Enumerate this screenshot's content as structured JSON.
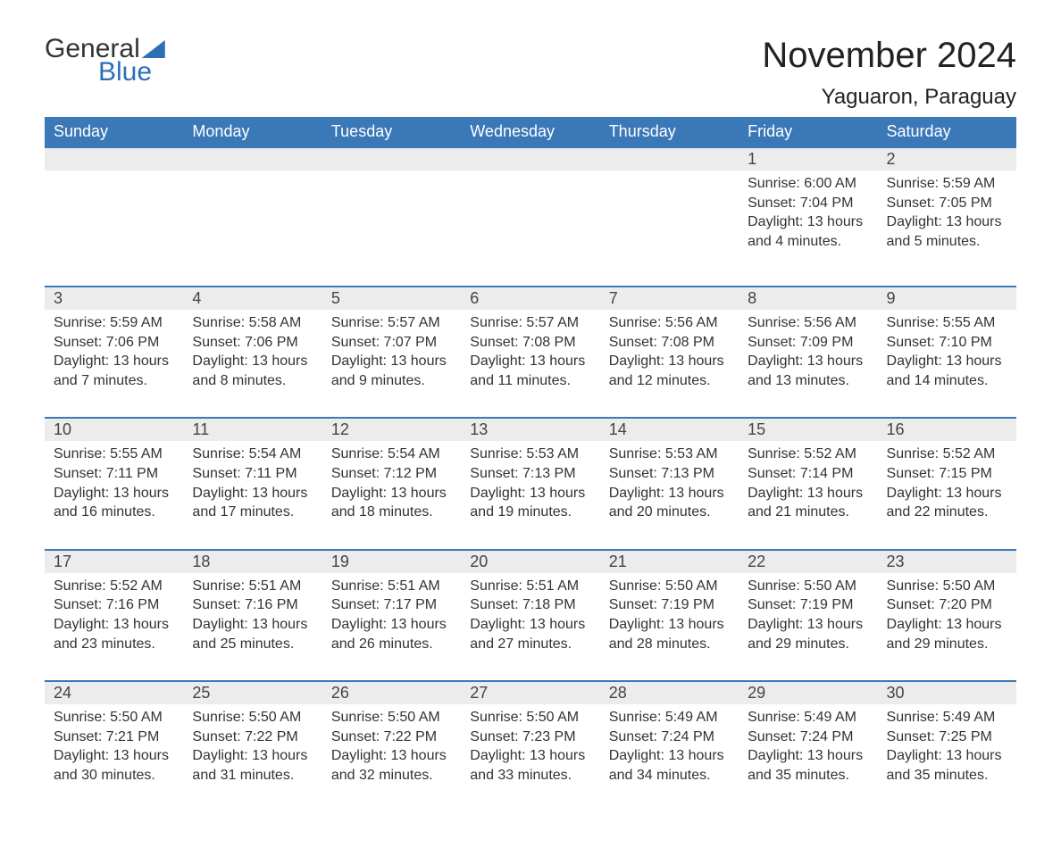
{
  "brand": {
    "word1": "General",
    "word2": "Blue"
  },
  "title": "November 2024",
  "location": "Yaguaron, Paraguay",
  "colors": {
    "header_bg": "#3b78b8",
    "header_text": "#ffffff",
    "daynum_bg": "#ececec",
    "row_border": "#3b78b8",
    "brand_blue": "#2d6fb6",
    "page_bg": "#ffffff",
    "body_text": "#333333"
  },
  "day_headers": [
    "Sunday",
    "Monday",
    "Tuesday",
    "Wednesday",
    "Thursday",
    "Friday",
    "Saturday"
  ],
  "weeks": [
    [
      {
        "num": "",
        "sunrise": "",
        "sunset": "",
        "daylight": ""
      },
      {
        "num": "",
        "sunrise": "",
        "sunset": "",
        "daylight": ""
      },
      {
        "num": "",
        "sunrise": "",
        "sunset": "",
        "daylight": ""
      },
      {
        "num": "",
        "sunrise": "",
        "sunset": "",
        "daylight": ""
      },
      {
        "num": "",
        "sunrise": "",
        "sunset": "",
        "daylight": ""
      },
      {
        "num": "1",
        "sunrise": "Sunrise: 6:00 AM",
        "sunset": "Sunset: 7:04 PM",
        "daylight": "Daylight: 13 hours and 4 minutes."
      },
      {
        "num": "2",
        "sunrise": "Sunrise: 5:59 AM",
        "sunset": "Sunset: 7:05 PM",
        "daylight": "Daylight: 13 hours and 5 minutes."
      }
    ],
    [
      {
        "num": "3",
        "sunrise": "Sunrise: 5:59 AM",
        "sunset": "Sunset: 7:06 PM",
        "daylight": "Daylight: 13 hours and 7 minutes."
      },
      {
        "num": "4",
        "sunrise": "Sunrise: 5:58 AM",
        "sunset": "Sunset: 7:06 PM",
        "daylight": "Daylight: 13 hours and 8 minutes."
      },
      {
        "num": "5",
        "sunrise": "Sunrise: 5:57 AM",
        "sunset": "Sunset: 7:07 PM",
        "daylight": "Daylight: 13 hours and 9 minutes."
      },
      {
        "num": "6",
        "sunrise": "Sunrise: 5:57 AM",
        "sunset": "Sunset: 7:08 PM",
        "daylight": "Daylight: 13 hours and 11 minutes."
      },
      {
        "num": "7",
        "sunrise": "Sunrise: 5:56 AM",
        "sunset": "Sunset: 7:08 PM",
        "daylight": "Daylight: 13 hours and 12 minutes."
      },
      {
        "num": "8",
        "sunrise": "Sunrise: 5:56 AM",
        "sunset": "Sunset: 7:09 PM",
        "daylight": "Daylight: 13 hours and 13 minutes."
      },
      {
        "num": "9",
        "sunrise": "Sunrise: 5:55 AM",
        "sunset": "Sunset: 7:10 PM",
        "daylight": "Daylight: 13 hours and 14 minutes."
      }
    ],
    [
      {
        "num": "10",
        "sunrise": "Sunrise: 5:55 AM",
        "sunset": "Sunset: 7:11 PM",
        "daylight": "Daylight: 13 hours and 16 minutes."
      },
      {
        "num": "11",
        "sunrise": "Sunrise: 5:54 AM",
        "sunset": "Sunset: 7:11 PM",
        "daylight": "Daylight: 13 hours and 17 minutes."
      },
      {
        "num": "12",
        "sunrise": "Sunrise: 5:54 AM",
        "sunset": "Sunset: 7:12 PM",
        "daylight": "Daylight: 13 hours and 18 minutes."
      },
      {
        "num": "13",
        "sunrise": "Sunrise: 5:53 AM",
        "sunset": "Sunset: 7:13 PM",
        "daylight": "Daylight: 13 hours and 19 minutes."
      },
      {
        "num": "14",
        "sunrise": "Sunrise: 5:53 AM",
        "sunset": "Sunset: 7:13 PM",
        "daylight": "Daylight: 13 hours and 20 minutes."
      },
      {
        "num": "15",
        "sunrise": "Sunrise: 5:52 AM",
        "sunset": "Sunset: 7:14 PM",
        "daylight": "Daylight: 13 hours and 21 minutes."
      },
      {
        "num": "16",
        "sunrise": "Sunrise: 5:52 AM",
        "sunset": "Sunset: 7:15 PM",
        "daylight": "Daylight: 13 hours and 22 minutes."
      }
    ],
    [
      {
        "num": "17",
        "sunrise": "Sunrise: 5:52 AM",
        "sunset": "Sunset: 7:16 PM",
        "daylight": "Daylight: 13 hours and 23 minutes."
      },
      {
        "num": "18",
        "sunrise": "Sunrise: 5:51 AM",
        "sunset": "Sunset: 7:16 PM",
        "daylight": "Daylight: 13 hours and 25 minutes."
      },
      {
        "num": "19",
        "sunrise": "Sunrise: 5:51 AM",
        "sunset": "Sunset: 7:17 PM",
        "daylight": "Daylight: 13 hours and 26 minutes."
      },
      {
        "num": "20",
        "sunrise": "Sunrise: 5:51 AM",
        "sunset": "Sunset: 7:18 PM",
        "daylight": "Daylight: 13 hours and 27 minutes."
      },
      {
        "num": "21",
        "sunrise": "Sunrise: 5:50 AM",
        "sunset": "Sunset: 7:19 PM",
        "daylight": "Daylight: 13 hours and 28 minutes."
      },
      {
        "num": "22",
        "sunrise": "Sunrise: 5:50 AM",
        "sunset": "Sunset: 7:19 PM",
        "daylight": "Daylight: 13 hours and 29 minutes."
      },
      {
        "num": "23",
        "sunrise": "Sunrise: 5:50 AM",
        "sunset": "Sunset: 7:20 PM",
        "daylight": "Daylight: 13 hours and 29 minutes."
      }
    ],
    [
      {
        "num": "24",
        "sunrise": "Sunrise: 5:50 AM",
        "sunset": "Sunset: 7:21 PM",
        "daylight": "Daylight: 13 hours and 30 minutes."
      },
      {
        "num": "25",
        "sunrise": "Sunrise: 5:50 AM",
        "sunset": "Sunset: 7:22 PM",
        "daylight": "Daylight: 13 hours and 31 minutes."
      },
      {
        "num": "26",
        "sunrise": "Sunrise: 5:50 AM",
        "sunset": "Sunset: 7:22 PM",
        "daylight": "Daylight: 13 hours and 32 minutes."
      },
      {
        "num": "27",
        "sunrise": "Sunrise: 5:50 AM",
        "sunset": "Sunset: 7:23 PM",
        "daylight": "Daylight: 13 hours and 33 minutes."
      },
      {
        "num": "28",
        "sunrise": "Sunrise: 5:49 AM",
        "sunset": "Sunset: 7:24 PM",
        "daylight": "Daylight: 13 hours and 34 minutes."
      },
      {
        "num": "29",
        "sunrise": "Sunrise: 5:49 AM",
        "sunset": "Sunset: 7:24 PM",
        "daylight": "Daylight: 13 hours and 35 minutes."
      },
      {
        "num": "30",
        "sunrise": "Sunrise: 5:49 AM",
        "sunset": "Sunset: 7:25 PM",
        "daylight": "Daylight: 13 hours and 35 minutes."
      }
    ]
  ]
}
